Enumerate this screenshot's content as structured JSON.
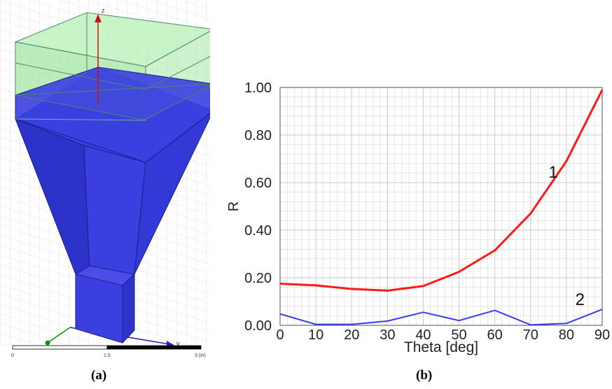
{
  "panel_a": {
    "caption": "(a)",
    "z_axis_label": "z",
    "y_axis_label": "y",
    "scale": {
      "ticks": [
        "0",
        "1.5",
        "3 (in)"
      ]
    }
  },
  "panel_b": {
    "caption": "(b)"
  },
  "colors": {
    "horn": "#3b3fe0",
    "horn_dark": "#2a2fc4",
    "radome": "#9fe89f",
    "grid": "#d0d0d0",
    "series_1": "#ff1a1a",
    "series_2": "#3a3af0",
    "axis_z": "#d01010",
    "axis_y": "#2020c0",
    "axis_x": "#109010"
  },
  "chart_data": {
    "type": "line",
    "xlabel": "Theta [deg]",
    "ylabel": "R",
    "xlim": [
      0,
      90
    ],
    "ylim": [
      0,
      1
    ],
    "x_ticks": [
      "0",
      "10",
      "20",
      "30",
      "40",
      "50",
      "60",
      "70",
      "80",
      "90"
    ],
    "y_ticks": [
      "0.00",
      "0.20",
      "0.40",
      "0.60",
      "0.80",
      "1.00"
    ],
    "grid": true,
    "series": [
      {
        "name": "1",
        "x": [
          0,
          10,
          20,
          30,
          40,
          50,
          60,
          70,
          80,
          90
        ],
        "values": [
          0.175,
          0.168,
          0.153,
          0.146,
          0.165,
          0.225,
          0.315,
          0.47,
          0.69,
          0.99
        ]
      },
      {
        "name": "2",
        "x": [
          0,
          10,
          20,
          30,
          40,
          50,
          60,
          70,
          80,
          90
        ],
        "values": [
          0.048,
          0.004,
          0.004,
          0.018,
          0.055,
          0.02,
          0.063,
          0.002,
          0.008,
          0.067
        ]
      }
    ]
  }
}
